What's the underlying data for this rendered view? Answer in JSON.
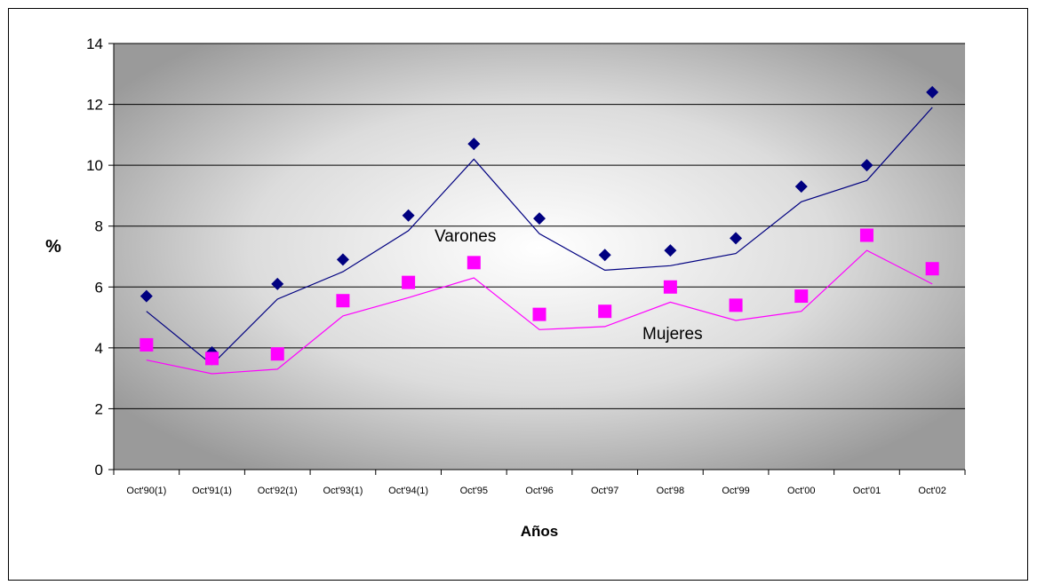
{
  "chart_data": {
    "type": "line",
    "title": "",
    "xlabel": "Años",
    "ylabel": "%",
    "ylim": [
      0,
      14
    ],
    "yticks": [
      0,
      2,
      4,
      6,
      8,
      10,
      12,
      14
    ],
    "grid": true,
    "categories": [
      "Oct'90(1)",
      "Oct'91(1)",
      "Oct'92(1)",
      "Oct'93(1)",
      "Oct'94(1)",
      "Oct'95",
      "Oct'96",
      "Oct'97",
      "Oct'98",
      "Oct'99",
      "Oct'00",
      "Oct'01",
      "Oct'02"
    ],
    "series": [
      {
        "name": "Varones",
        "color": "#000080",
        "marker": "diamond",
        "points": [
          5.7,
          3.85,
          6.1,
          6.9,
          8.35,
          10.7,
          8.25,
          7.05,
          7.2,
          7.6,
          9.3,
          10.0,
          12.4
        ],
        "line": [
          5.2,
          3.45,
          5.6,
          6.5,
          7.85,
          10.2,
          7.75,
          6.55,
          6.7,
          7.1,
          8.8,
          9.5,
          11.9
        ]
      },
      {
        "name": "Mujeres",
        "color": "#ff00ff",
        "marker": "square",
        "points": [
          4.1,
          3.65,
          3.8,
          5.55,
          6.15,
          6.8,
          5.1,
          5.2,
          6.0,
          5.4,
          5.7,
          7.7,
          6.6
        ],
        "line": [
          3.6,
          3.15,
          3.3,
          5.05,
          5.65,
          6.3,
          4.6,
          4.7,
          5.5,
          4.9,
          5.2,
          7.2,
          6.1
        ]
      }
    ]
  }
}
